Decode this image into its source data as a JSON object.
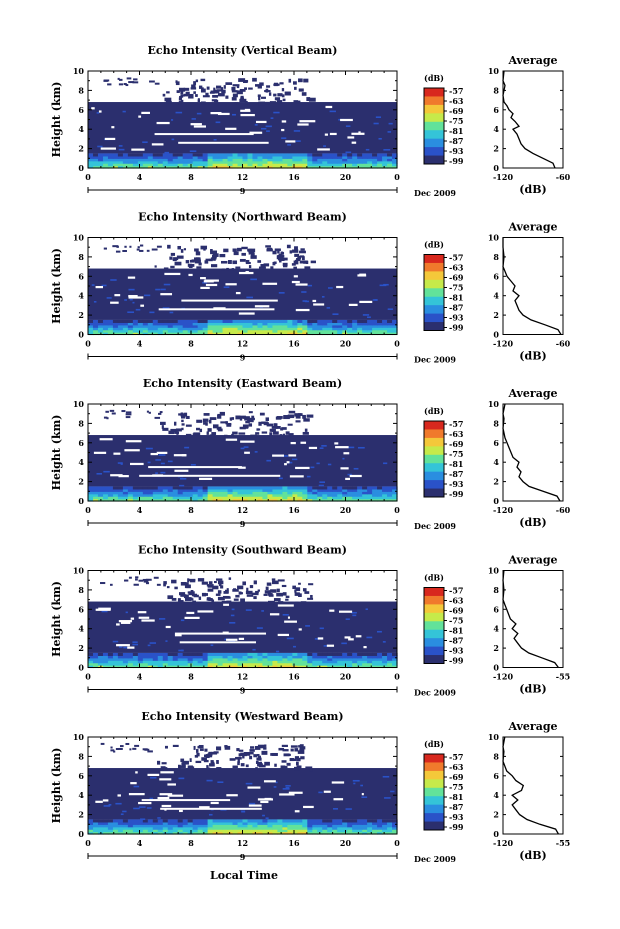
{
  "figure": {
    "x_axis_label": "Local Time",
    "date_label": "Dec 2009",
    "day_marker": "9",
    "colorbar_unit": "(dB)",
    "avg_title": "Average",
    "avg_xlabel": "(dB)",
    "height_label": "Height (km)"
  },
  "colors": {
    "background_echo": "#2b2f6e",
    "no_data": "#ffffff",
    "colormap": [
      "#2b2f6e",
      "#2a52c8",
      "#2a8ee0",
      "#34c4d8",
      "#62e29a",
      "#c6ea4a",
      "#f4c83a",
      "#f07a2c",
      "#d8281e"
    ]
  },
  "chart_data": [
    {
      "type": "heatmap",
      "title": "Echo Intensity (Vertical Beam)",
      "xlabel": "",
      "ylabel": "Height (km)",
      "xlim": [
        0,
        24
      ],
      "ylim": [
        0,
        10
      ],
      "x_ticks": [
        "0",
        "4",
        "8",
        "12",
        "16",
        "20",
        "0"
      ],
      "y_ticks": [
        "0",
        "2",
        "4",
        "6",
        "8",
        "10"
      ],
      "colorbar_ticks": [
        "-57",
        "-63",
        "-69",
        "-75",
        "-81",
        "-87",
        "-93",
        "-99"
      ],
      "colorbar_range_db": [
        -99,
        -57
      ],
      "layers": [
        {
          "height_km": [
            0,
            1.5
          ],
          "level": "strong"
        },
        {
          "height_km": [
            1.5,
            6.8
          ],
          "level": "weak"
        },
        {
          "height_km": [
            6.8,
            9.3
          ],
          "level": "sparse"
        }
      ],
      "average": {
        "xlim": [
          -120,
          -60
        ],
        "x_ticks": [
          "-120",
          "-60"
        ],
        "y_ticks": [
          "0",
          "2",
          "4",
          "6",
          "8",
          "10"
        ],
        "profile": [
          [
            -68,
            0
          ],
          [
            -70,
            0.5
          ],
          [
            -80,
            1.0
          ],
          [
            -90,
            1.5
          ],
          [
            -98,
            2.0
          ],
          [
            -102,
            2.5
          ],
          [
            -104,
            3.0
          ],
          [
            -106,
            3.5
          ],
          [
            -110,
            4.0
          ],
          [
            -104,
            4.3
          ],
          [
            -108,
            4.8
          ],
          [
            -112,
            5.2
          ],
          [
            -110,
            5.6
          ],
          [
            -114,
            6.0
          ],
          [
            -116,
            6.4
          ],
          [
            -119,
            6.8
          ],
          [
            -120,
            7.5
          ],
          [
            -118,
            8.5
          ],
          [
            -120,
            9.0
          ],
          [
            -119,
            10
          ]
        ]
      }
    },
    {
      "type": "heatmap",
      "title": "Echo Intensity (Northward Beam)",
      "xlabel": "",
      "ylabel": "Height (km)",
      "xlim": [
        0,
        24
      ],
      "ylim": [
        0,
        10
      ],
      "x_ticks": [
        "0",
        "4",
        "8",
        "12",
        "16",
        "20",
        "0"
      ],
      "y_ticks": [
        "0",
        "2",
        "4",
        "6",
        "8",
        "10"
      ],
      "colorbar_ticks": [
        "-57",
        "-63",
        "-69",
        "-75",
        "-81",
        "-87",
        "-93",
        "-99"
      ],
      "colorbar_range_db": [
        -99,
        -57
      ],
      "layers": [
        {
          "height_km": [
            0,
            1.5
          ],
          "level": "strong"
        },
        {
          "height_km": [
            1.5,
            6.8
          ],
          "level": "weak"
        },
        {
          "height_km": [
            6.8,
            9.3
          ],
          "level": "sparse"
        }
      ],
      "average": {
        "xlim": [
          -120,
          -60
        ],
        "x_ticks": [
          "-120",
          "-60"
        ],
        "y_ticks": [
          "0",
          "2",
          "4",
          "6",
          "8",
          "10"
        ],
        "profile": [
          [
            -62,
            0
          ],
          [
            -65,
            0.5
          ],
          [
            -78,
            1.0
          ],
          [
            -92,
            1.5
          ],
          [
            -100,
            2.0
          ],
          [
            -104,
            2.5
          ],
          [
            -106,
            3.0
          ],
          [
            -108,
            3.5
          ],
          [
            -104,
            4.0
          ],
          [
            -110,
            4.5
          ],
          [
            -108,
            5.0
          ],
          [
            -112,
            5.5
          ],
          [
            -116,
            6.0
          ],
          [
            -118,
            6.5
          ],
          [
            -120,
            7.0
          ],
          [
            -119,
            8.0
          ],
          [
            -120,
            9.0
          ],
          [
            -120,
            10
          ]
        ]
      }
    },
    {
      "type": "heatmap",
      "title": "Echo Intensity (Eastward Beam)",
      "xlabel": "",
      "ylabel": "Height (km)",
      "xlim": [
        0,
        24
      ],
      "ylim": [
        0,
        10
      ],
      "x_ticks": [
        "0",
        "4",
        "8",
        "12",
        "16",
        "20",
        "0"
      ],
      "y_ticks": [
        "0",
        "2",
        "4",
        "6",
        "8",
        "10"
      ],
      "colorbar_ticks": [
        "-57",
        "-63",
        "-69",
        "-75",
        "-81",
        "-87",
        "-93",
        "-99"
      ],
      "colorbar_range_db": [
        -99,
        -57
      ],
      "layers": [
        {
          "height_km": [
            0,
            1.5
          ],
          "level": "strong"
        },
        {
          "height_km": [
            1.5,
            6.8
          ],
          "level": "weak"
        },
        {
          "height_km": [
            6.8,
            9.3
          ],
          "level": "sparse"
        }
      ],
      "average": {
        "xlim": [
          -120,
          -60
        ],
        "x_ticks": [
          "-120",
          "-60"
        ],
        "y_ticks": [
          "0",
          "2",
          "4",
          "6",
          "8",
          "10"
        ],
        "profile": [
          [
            -63,
            0
          ],
          [
            -66,
            0.5
          ],
          [
            -80,
            1.0
          ],
          [
            -94,
            1.5
          ],
          [
            -100,
            2.0
          ],
          [
            -104,
            2.5
          ],
          [
            -102,
            3.0
          ],
          [
            -106,
            3.5
          ],
          [
            -104,
            4.0
          ],
          [
            -110,
            4.5
          ],
          [
            -112,
            5.0
          ],
          [
            -114,
            5.5
          ],
          [
            -116,
            6.0
          ],
          [
            -118,
            6.5
          ],
          [
            -120,
            7.5
          ],
          [
            -119,
            8.5
          ],
          [
            -120,
            9.0
          ],
          [
            -118,
            10
          ]
        ]
      }
    },
    {
      "type": "heatmap",
      "title": "Echo Intensity (Southward Beam)",
      "xlabel": "",
      "ylabel": "Height (km)",
      "xlim": [
        0,
        24
      ],
      "ylim": [
        0,
        10
      ],
      "x_ticks": [
        "0",
        "4",
        "8",
        "12",
        "16",
        "20",
        "0"
      ],
      "y_ticks": [
        "0",
        "2",
        "4",
        "6",
        "8",
        "10"
      ],
      "colorbar_ticks": [
        "-57",
        "-63",
        "-69",
        "-75",
        "-81",
        "-87",
        "-93",
        "-99"
      ],
      "colorbar_range_db": [
        -99,
        -57
      ],
      "layers": [
        {
          "height_km": [
            0,
            1.5
          ],
          "level": "strong"
        },
        {
          "height_km": [
            1.5,
            6.8
          ],
          "level": "weak"
        },
        {
          "height_km": [
            6.8,
            9.3
          ],
          "level": "sparse"
        }
      ],
      "average": {
        "xlim": [
          -120,
          -55
        ],
        "x_ticks": [
          "-120",
          "-55"
        ],
        "y_ticks": [
          "0",
          "2",
          "4",
          "6",
          "8",
          "10"
        ],
        "profile": [
          [
            -60,
            0
          ],
          [
            -64,
            0.5
          ],
          [
            -78,
            1.0
          ],
          [
            -92,
            1.5
          ],
          [
            -100,
            2.0
          ],
          [
            -104,
            2.5
          ],
          [
            -108,
            3.0
          ],
          [
            -104,
            3.5
          ],
          [
            -110,
            4.0
          ],
          [
            -106,
            4.5
          ],
          [
            -112,
            5.0
          ],
          [
            -114,
            5.5
          ],
          [
            -116,
            6.0
          ],
          [
            -118,
            6.5
          ],
          [
            -120,
            7.0
          ],
          [
            -119,
            8.0
          ],
          [
            -120,
            9.0
          ],
          [
            -119,
            10
          ]
        ]
      }
    },
    {
      "type": "heatmap",
      "title": "Echo Intensity (Westward Beam)",
      "xlabel": "Local Time",
      "ylabel": "Height (km)",
      "xlim": [
        0,
        24
      ],
      "ylim": [
        0,
        10
      ],
      "x_ticks": [
        "0",
        "4",
        "8",
        "12",
        "16",
        "20",
        "0"
      ],
      "y_ticks": [
        "0",
        "2",
        "4",
        "6",
        "8",
        "10"
      ],
      "colorbar_ticks": [
        "-57",
        "-63",
        "-69",
        "-75",
        "-81",
        "-87",
        "-93",
        "-99"
      ],
      "colorbar_range_db": [
        -99,
        -57
      ],
      "layers": [
        {
          "height_km": [
            0,
            1.5
          ],
          "level": "strong"
        },
        {
          "height_km": [
            1.5,
            6.8
          ],
          "level": "weak"
        },
        {
          "height_km": [
            6.8,
            9.3
          ],
          "level": "sparse"
        }
      ],
      "average": {
        "xlim": [
          -120,
          -55
        ],
        "x_ticks": [
          "-120",
          "-55"
        ],
        "y_ticks": [
          "0",
          "2",
          "4",
          "6",
          "8",
          "10"
        ],
        "profile": [
          [
            -60,
            0
          ],
          [
            -63,
            0.5
          ],
          [
            -80,
            1.0
          ],
          [
            -94,
            1.5
          ],
          [
            -102,
            2.0
          ],
          [
            -106,
            2.5
          ],
          [
            -110,
            3.0
          ],
          [
            -104,
            3.5
          ],
          [
            -110,
            4.0
          ],
          [
            -100,
            4.5
          ],
          [
            -98,
            5.0
          ],
          [
            -106,
            5.5
          ],
          [
            -110,
            6.0
          ],
          [
            -116,
            6.5
          ],
          [
            -120,
            7.5
          ],
          [
            -119,
            8.5
          ],
          [
            -120,
            9.0
          ],
          [
            -118,
            10
          ]
        ]
      }
    }
  ]
}
